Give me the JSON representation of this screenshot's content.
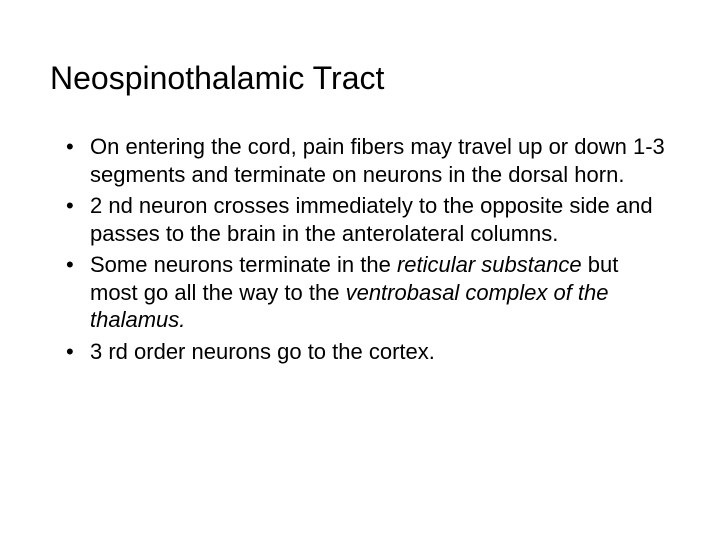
{
  "slide": {
    "title": "Neospinothalamic Tract",
    "background_color": "#ffffff",
    "text_color": "#000000",
    "title_fontsize": 32,
    "body_fontsize": 22,
    "bullets": [
      {
        "pre": "On entering the cord, pain fibers may travel up or down 1-3 segments and terminate on neurons in the dorsal horn.",
        "italic1": "",
        "mid": "",
        "italic2": "",
        "post": ""
      },
      {
        "pre": "2 nd neuron crosses immediately to the opposite side and passes to the brain in the anterolateral columns.",
        "italic1": "",
        "mid": "",
        "italic2": "",
        "post": ""
      },
      {
        "pre": "Some neurons terminate in the ",
        "italic1": "reticular substance",
        "mid": " but most go all the way to the ",
        "italic2": "ventrobasal complex of the thalamus.",
        "post": ""
      },
      {
        "pre": "3 rd order neurons go to the cortex.",
        "italic1": "",
        "mid": "",
        "italic2": "",
        "post": ""
      }
    ]
  }
}
